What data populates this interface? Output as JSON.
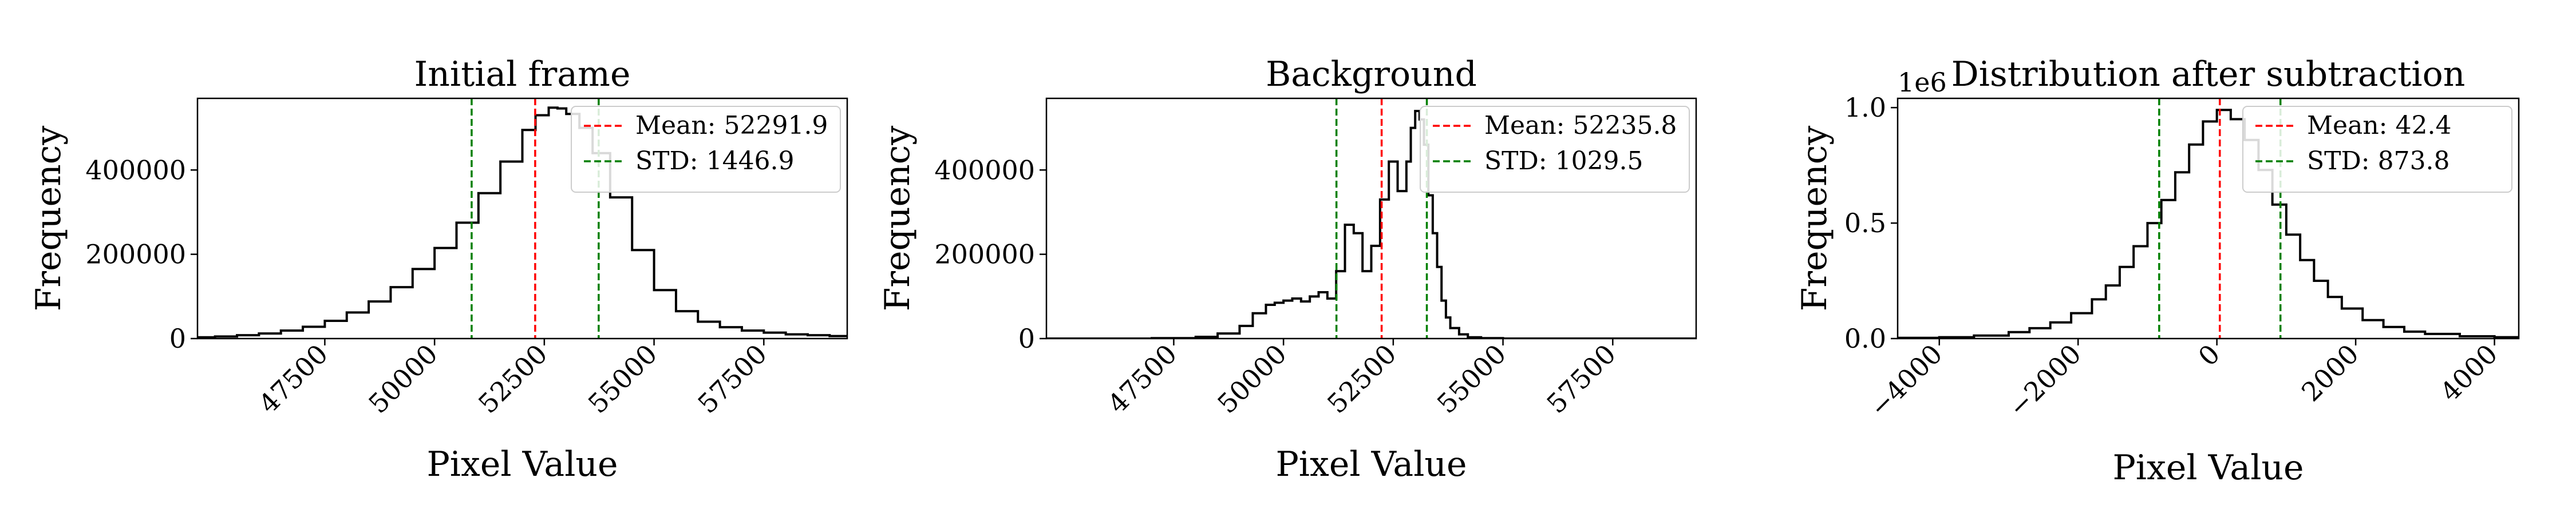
{
  "chart_data": [
    {
      "type": "histogram",
      "title": "Initial frame",
      "xlabel": "Pixel Value",
      "ylabel": "Frequency",
      "xlim": [
        44600,
        59400
      ],
      "ylim": [
        0,
        570000
      ],
      "xticks": [
        47500,
        50000,
        52500,
        55000,
        57500
      ],
      "xtick_labels": [
        "47500",
        "50000",
        "52500",
        "55000",
        "57500"
      ],
      "xtick_rotation": 45,
      "yticks": [
        0,
        200000,
        400000
      ],
      "ytick_labels": [
        "0",
        "200000",
        "400000"
      ],
      "y_offset_label": "",
      "histogram": {
        "color": "#000000",
        "x": [
          44600,
          45000,
          45500,
          46000,
          46500,
          47000,
          47500,
          48000,
          48500,
          49000,
          49500,
          50000,
          50500,
          51000,
          51500,
          52000,
          52300,
          52600,
          52800,
          53000,
          53300,
          53600,
          54000,
          54500,
          55000,
          55500,
          56000,
          56500,
          57000,
          57500,
          58000,
          58500,
          59000,
          59400
        ],
        "y": [
          3000,
          5000,
          8000,
          12000,
          19000,
          28000,
          42000,
          62000,
          88000,
          122000,
          165000,
          215000,
          275000,
          345000,
          420000,
          495000,
          530000,
          548000,
          546000,
          533000,
          500000,
          440000,
          335000,
          210000,
          115000,
          65000,
          40000,
          27000,
          19000,
          14000,
          10000,
          8000,
          6000,
          5000
        ]
      },
      "vlines": [
        {
          "label": "Mean: 52291.9",
          "x": 52291.9,
          "color": "#ff0000",
          "style": "dashed"
        },
        {
          "label": "STD: 1446.9",
          "x_values": [
            50845.0,
            53738.8
          ],
          "color": "#008000",
          "style": "dashed"
        }
      ],
      "legend": {
        "position": "upper right",
        "entries": [
          "Mean: 52291.9",
          "STD: 1446.9"
        ]
      }
    },
    {
      "type": "histogram",
      "title": "Background",
      "xlabel": "Pixel Value",
      "ylabel": "Frequency",
      "xlim": [
        44600,
        59400
      ],
      "ylim": [
        0,
        570000
      ],
      "xticks": [
        47500,
        50000,
        52500,
        55000,
        57500
      ],
      "xtick_labels": [
        "47500",
        "50000",
        "52500",
        "55000",
        "57500"
      ],
      "xtick_rotation": 45,
      "yticks": [
        0,
        200000,
        400000
      ],
      "ytick_labels": [
        "0",
        "200000",
        "400000"
      ],
      "y_offset_label": "",
      "histogram": {
        "color": "#000000",
        "x": [
          44600,
          46000,
          47000,
          48000,
          48500,
          49000,
          49300,
          49600,
          49800,
          50000,
          50200,
          50400,
          50600,
          50800,
          51000,
          51200,
          51400,
          51600,
          51800,
          52000,
          52200,
          52400,
          52600,
          52800,
          52900,
          53000,
          53100,
          53200,
          53300,
          53400,
          53500,
          53600,
          53700,
          53800,
          54000,
          54200,
          54500,
          55000,
          56000,
          57000,
          58000,
          59400
        ],
        "y": [
          0,
          0,
          1000,
          4000,
          12000,
          30000,
          60000,
          80000,
          85000,
          90000,
          95000,
          88000,
          100000,
          110000,
          95000,
          160000,
          270000,
          250000,
          160000,
          220000,
          330000,
          420000,
          350000,
          420000,
          500000,
          540000,
          520000,
          460000,
          340000,
          250000,
          170000,
          90000,
          50000,
          25000,
          10000,
          3000,
          1000,
          0,
          0,
          0,
          0,
          0
        ]
      },
      "vlines": [
        {
          "label": "Mean: 52235.8",
          "x": 52235.8,
          "color": "#ff0000",
          "style": "dashed"
        },
        {
          "label": "STD: 1029.5",
          "x_values": [
            51206.3,
            53265.3
          ],
          "color": "#008000",
          "style": "dashed"
        }
      ],
      "legend": {
        "position": "upper right",
        "entries": [
          "Mean: 52235.8",
          "STD: 1029.5"
        ]
      }
    },
    {
      "type": "histogram",
      "title": "Distribution after subtraction",
      "xlabel": "Pixel Value",
      "ylabel": "Frequency",
      "xlim": [
        -4600,
        4350
      ],
      "ylim": [
        0,
        1.04
      ],
      "xticks": [
        -4000,
        -2000,
        0,
        2000,
        4000
      ],
      "xtick_labels": [
        "−4000",
        "−2000",
        "0",
        "2000",
        "4000"
      ],
      "xtick_rotation": 45,
      "yticks": [
        0.0,
        0.5,
        1.0
      ],
      "ytick_labels": [
        "0.0",
        "0.5",
        "1.0"
      ],
      "y_offset_label": "1e6",
      "histogram": {
        "color": "#000000",
        "x": [
          -4600,
          -4000,
          -3500,
          -3000,
          -2700,
          -2400,
          -2100,
          -1800,
          -1600,
          -1400,
          -1200,
          -1000,
          -800,
          -600,
          -400,
          -200,
          0,
          200,
          400,
          600,
          800,
          1000,
          1200,
          1400,
          1600,
          1800,
          2100,
          2400,
          2700,
          3000,
          3500,
          4000,
          4350
        ],
        "y": [
          0.003,
          0.006,
          0.013,
          0.028,
          0.045,
          0.07,
          0.11,
          0.17,
          0.23,
          0.31,
          0.4,
          0.5,
          0.6,
          0.72,
          0.84,
          0.94,
          0.99,
          0.95,
          0.86,
          0.73,
          0.58,
          0.45,
          0.34,
          0.25,
          0.18,
          0.13,
          0.08,
          0.05,
          0.03,
          0.02,
          0.01,
          0.006,
          0.004
        ]
      },
      "vlines": [
        {
          "label": "Mean: 42.4",
          "x": 42.4,
          "color": "#ff0000",
          "style": "dashed"
        },
        {
          "label": "STD: 873.8",
          "x_values": [
            -831.4,
            916.2
          ],
          "color": "#008000",
          "style": "dashed"
        }
      ],
      "legend": {
        "position": "upper right",
        "entries": [
          "Mean: 42.4",
          "STD: 873.8"
        ]
      }
    }
  ]
}
